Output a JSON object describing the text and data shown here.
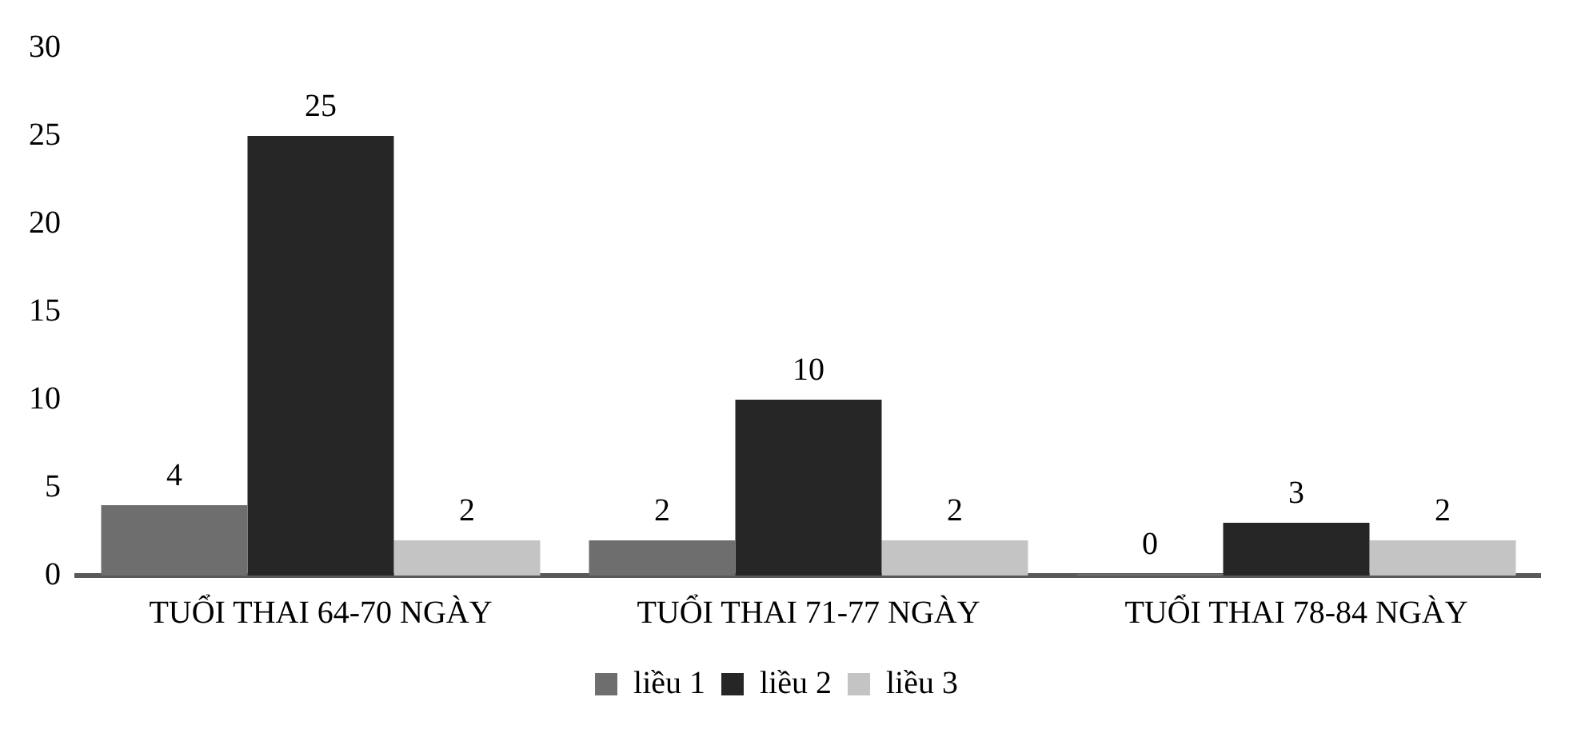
{
  "chart_data": {
    "type": "bar",
    "categories": [
      "TUỔI THAI 64-70 NGÀY",
      "TUỔI THAI 71-77 NGÀY",
      "TUỔI THAI 78-84 NGÀY"
    ],
    "series": [
      {
        "name": "liều 1",
        "color": "#6e6e6e",
        "values": [
          4,
          2,
          0
        ]
      },
      {
        "name": "liều 2",
        "color": "#262626",
        "values": [
          25,
          10,
          3
        ]
      },
      {
        "name": "liều 3",
        "color": "#c4c4c4",
        "values": [
          2,
          2,
          2
        ]
      }
    ],
    "ylim": [
      0,
      30
    ],
    "yticks": [
      0,
      5,
      10,
      15,
      20,
      25,
      30
    ],
    "grid": false,
    "legend": "bottom",
    "data_labels": true
  }
}
